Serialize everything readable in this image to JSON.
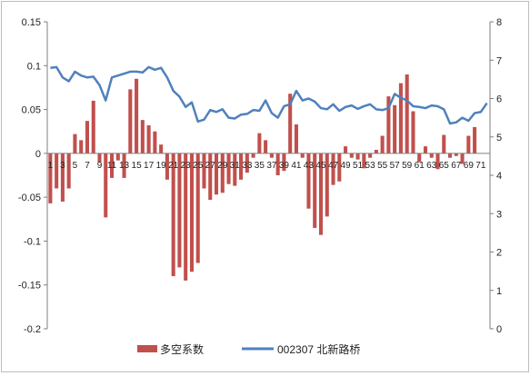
{
  "chart_data": {
    "type": "bar+line",
    "x": [
      1,
      2,
      3,
      4,
      5,
      6,
      7,
      8,
      9,
      10,
      11,
      12,
      13,
      14,
      15,
      16,
      17,
      18,
      19,
      20,
      21,
      22,
      23,
      24,
      25,
      26,
      27,
      28,
      29,
      30,
      31,
      32,
      33,
      34,
      35,
      36,
      37,
      38,
      39,
      40,
      41,
      42,
      43,
      44,
      45,
      46,
      47,
      48,
      49,
      50,
      51,
      52,
      53,
      54,
      55,
      56,
      57,
      58,
      59,
      60,
      61,
      62,
      63,
      64,
      65,
      66,
      67,
      68,
      69,
      70,
      71,
      72
    ],
    "x_tick_labels": [
      "1",
      "3",
      "5",
      "7",
      "9",
      "11",
      "13",
      "15",
      "17",
      "19",
      "21",
      "23",
      "25",
      "27",
      "29",
      "31",
      "33",
      "35",
      "37",
      "39",
      "41",
      "43",
      "45",
      "47",
      "49",
      "51",
      "53",
      "55",
      "57",
      "59",
      "61",
      "63",
      "65",
      "67",
      "69",
      "71"
    ],
    "series": [
      {
        "name": "多空系数",
        "kind": "bar",
        "axis": "left",
        "color": "#c0504d",
        "values": [
          -0.057,
          -0.04,
          -0.055,
          -0.04,
          0.022,
          0.015,
          0.037,
          0.06,
          -0.01,
          -0.073,
          -0.028,
          -0.008,
          -0.028,
          0.073,
          0.085,
          0.038,
          0.032,
          0.025,
          0.01,
          -0.03,
          -0.14,
          -0.13,
          -0.145,
          -0.135,
          -0.125,
          -0.04,
          -0.053,
          -0.047,
          -0.045,
          -0.035,
          -0.037,
          -0.03,
          -0.022,
          -0.005,
          0.023,
          0.015,
          -0.005,
          -0.025,
          -0.02,
          0.068,
          0.033,
          -0.005,
          -0.063,
          -0.085,
          -0.093,
          -0.072,
          -0.036,
          -0.032,
          0.008,
          -0.005,
          -0.007,
          -0.017,
          -0.005,
          0.004,
          0.02,
          0.065,
          0.055,
          0.08,
          0.09,
          0.048,
          -0.01,
          0.008,
          -0.005,
          -0.018,
          0.021,
          -0.005,
          -0.003,
          -0.012,
          0.02,
          0.03,
          0,
          0
        ]
      },
      {
        "name": "002307 北新路桥",
        "kind": "line",
        "axis": "right",
        "color": "#4f81bd",
        "values": [
          6.8,
          6.82,
          6.55,
          6.45,
          6.7,
          6.6,
          6.55,
          6.57,
          6.35,
          5.95,
          6.55,
          6.6,
          6.65,
          6.7,
          6.7,
          6.68,
          6.82,
          6.75,
          6.8,
          6.55,
          6.2,
          6.05,
          5.78,
          5.9,
          5.4,
          5.45,
          5.7,
          5.65,
          5.72,
          5.5,
          5.48,
          5.58,
          5.6,
          5.7,
          5.68,
          5.95,
          5.62,
          5.5,
          5.8,
          5.85,
          6.2,
          5.95,
          6.0,
          5.92,
          5.75,
          5.72,
          5.85,
          5.68,
          5.78,
          5.82,
          5.73,
          5.8,
          5.85,
          5.72,
          5.7,
          5.75,
          6.12,
          6.02,
          5.95,
          5.8,
          5.78,
          5.75,
          5.82,
          5.8,
          5.72,
          5.35,
          5.38,
          5.5,
          5.42,
          5.62,
          5.65,
          5.88
        ]
      }
    ],
    "y_left": {
      "min": -0.2,
      "max": 0.15,
      "ticks": [
        "-0.2",
        "-0.15",
        "-0.1",
        "-0.05",
        "0",
        "0.05",
        "0.1",
        "0.15"
      ]
    },
    "y_right": {
      "min": 0,
      "max": 8,
      "ticks": [
        "0",
        "1",
        "2",
        "3",
        "4",
        "5",
        "6",
        "7",
        "8"
      ]
    },
    "grid": false,
    "legend_position": "bottom"
  }
}
